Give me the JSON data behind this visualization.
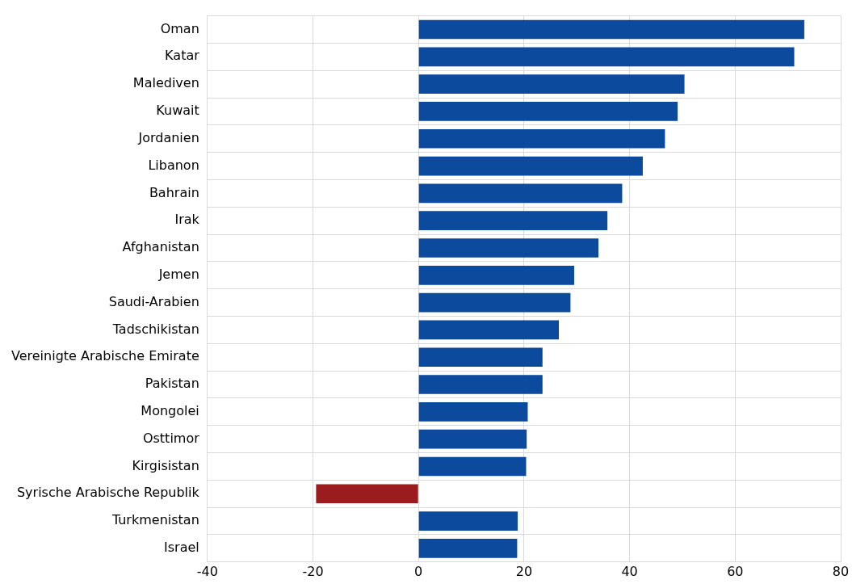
{
  "chart_data": {
    "type": "bar",
    "orientation": "horizontal",
    "categories": [
      "Oman",
      "Katar",
      "Malediven",
      "Kuwait",
      "Jordanien",
      "Libanon",
      "Bahrain",
      "Irak",
      "Afghanistan",
      "Jemen",
      "Saudi-Arabien",
      "Tadschikistan",
      "Vereinigte Arabische Emirate",
      "Pakistan",
      "Mongolei",
      "Osttimor",
      "Kirgisistan",
      "Syrische Arabische Republik",
      "Turkmenistan",
      "Israel"
    ],
    "values": [
      73.1,
      71.2,
      50.4,
      49.1,
      46.7,
      42.5,
      38.6,
      35.8,
      34.1,
      29.5,
      28.8,
      26.6,
      23.5,
      23.5,
      20.7,
      20.5,
      20.4,
      -19.4,
      18.8,
      18.7
    ],
    "colors": [
      "#0b4a9c",
      "#0b4a9c",
      "#0b4a9c",
      "#0b4a9c",
      "#0b4a9c",
      "#0b4a9c",
      "#0b4a9c",
      "#0b4a9c",
      "#0b4a9c",
      "#0b4a9c",
      "#0b4a9c",
      "#0b4a9c",
      "#0b4a9c",
      "#0b4a9c",
      "#0b4a9c",
      "#0b4a9c",
      "#0b4a9c",
      "#9b1c1f",
      "#0b4a9c",
      "#0b4a9c"
    ],
    "xlim": [
      -40,
      80
    ],
    "xticks": [
      -40,
      -20,
      0,
      20,
      40,
      60,
      80
    ],
    "grid": true,
    "legend": false
  }
}
